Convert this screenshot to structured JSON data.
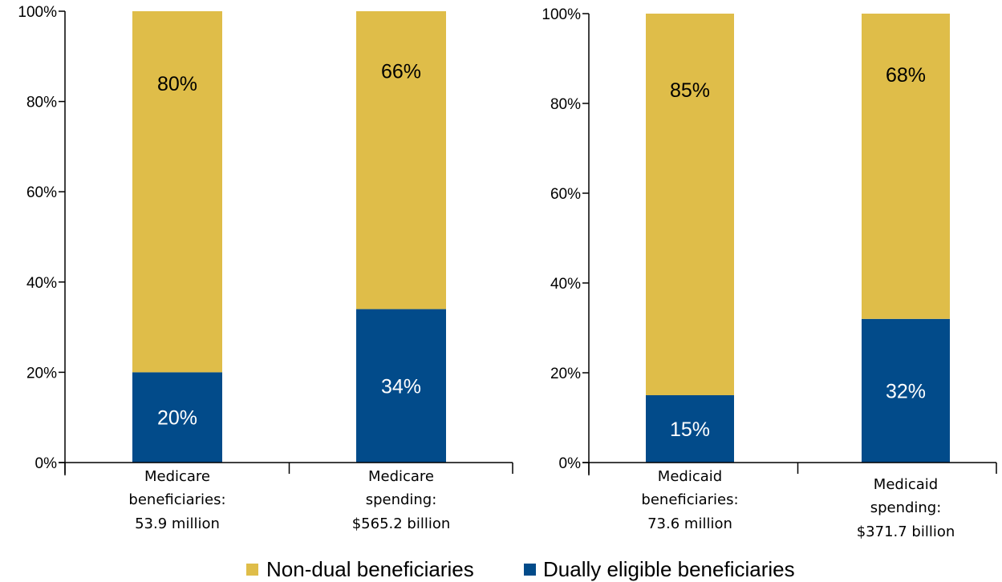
{
  "chart_data": [
    {
      "type": "bar",
      "stacked": true,
      "categories": [
        [
          "Medicare",
          "beneficiaries:",
          "53.9 million"
        ],
        [
          "Medicare",
          "spending:",
          "$565.2 billion"
        ]
      ],
      "series": [
        {
          "name": "Dually eligible beneficiaries",
          "values": [
            20,
            34
          ],
          "labels": [
            "20%",
            "34%"
          ]
        },
        {
          "name": "Non-dual beneficiaries",
          "values": [
            80,
            66
          ],
          "labels": [
            "80%",
            "66%"
          ]
        }
      ],
      "ylim": [
        0,
        100
      ],
      "yticks": [
        "0%",
        "20%",
        "40%",
        "60%",
        "80%",
        "100%"
      ]
    },
    {
      "type": "bar",
      "stacked": true,
      "categories": [
        [
          "Medicaid",
          "beneficiaries:",
          "73.6 million"
        ],
        [
          "Medicaid",
          "spending:",
          "$371.7 billion"
        ]
      ],
      "series": [
        {
          "name": "Dually eligible beneficiaries",
          "values": [
            15,
            32
          ],
          "labels": [
            "15%",
            "32%"
          ]
        },
        {
          "name": "Non-dual beneficiaries",
          "values": [
            85,
            68
          ],
          "labels": [
            "85%",
            "68%"
          ]
        }
      ],
      "ylim": [
        0,
        100
      ],
      "yticks": [
        "0%",
        "20%",
        "40%",
        "60%",
        "80%",
        "100%"
      ]
    }
  ],
  "colors": {
    "dual": "#024b8a",
    "nondual": "#dfbd49",
    "dual_label": "#ffffff",
    "nondual_label": "#000000"
  },
  "legend": {
    "items": [
      {
        "name": "Non-dual beneficiaries",
        "color_key": "nondual"
      },
      {
        "name": "Dually eligible beneficiaries",
        "color_key": "dual"
      }
    ]
  }
}
